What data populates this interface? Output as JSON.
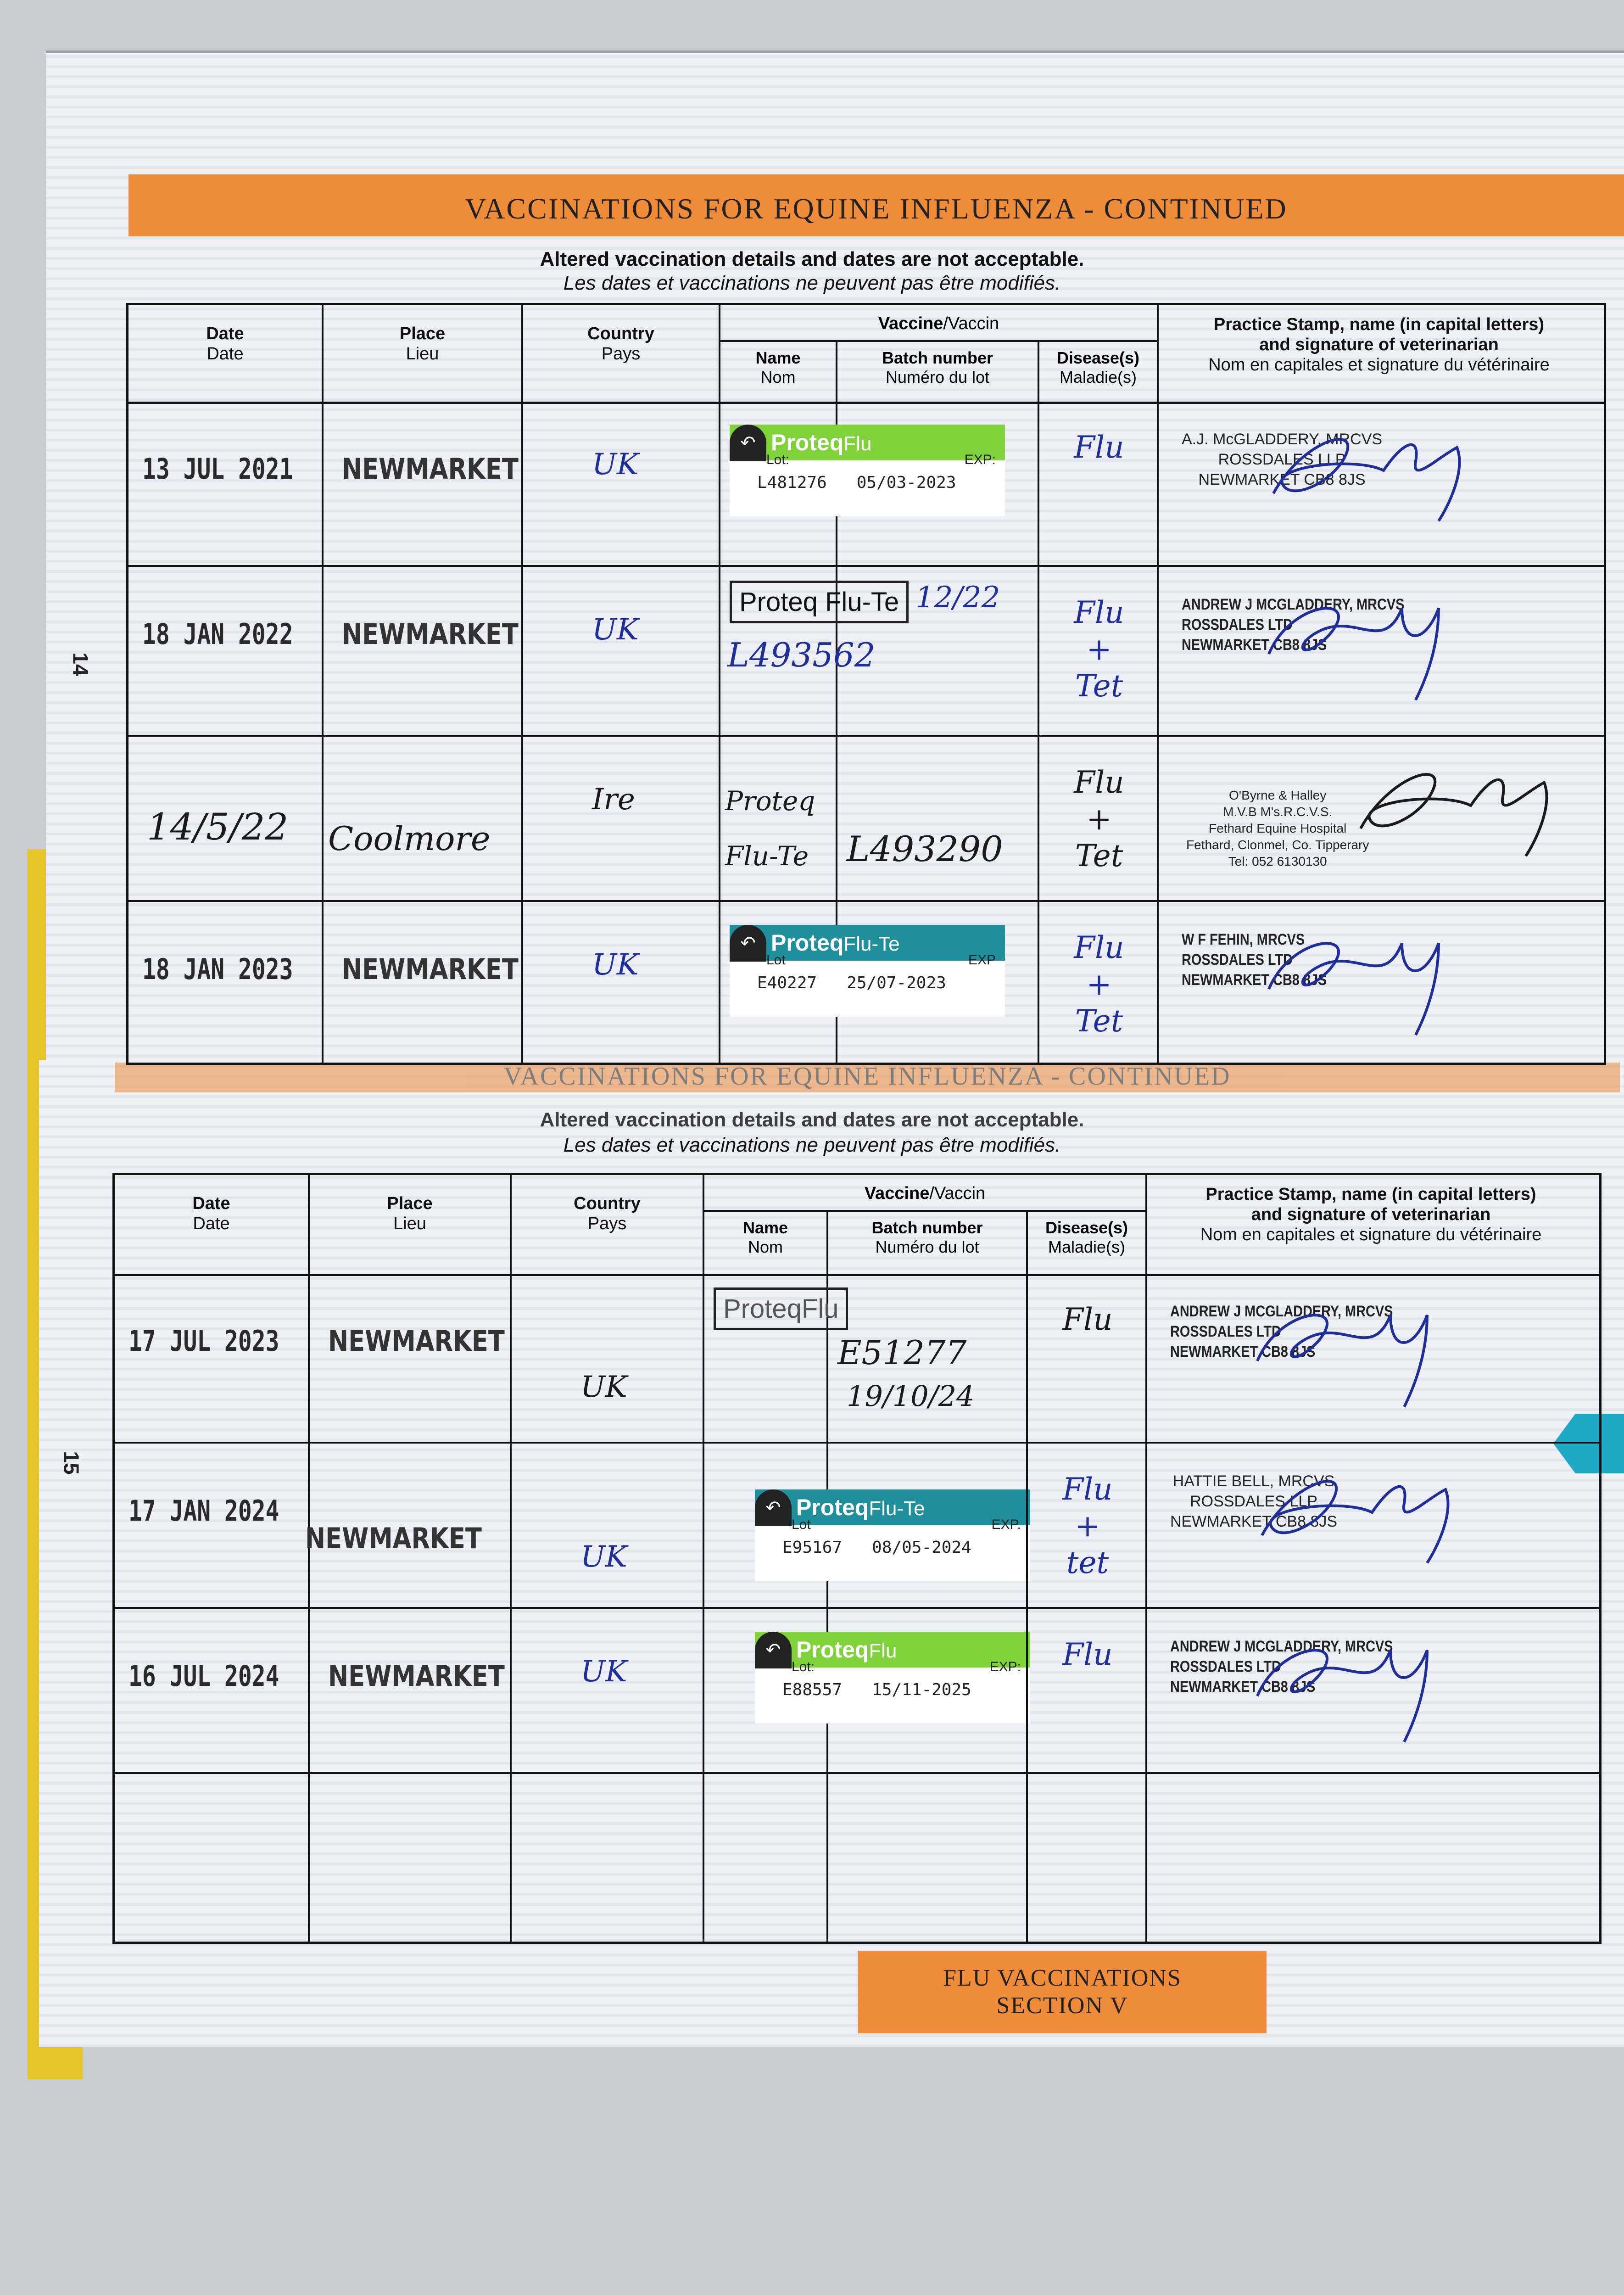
{
  "banner_title": "VACCINATIONS FOR EQUINE INFLUENZA - CONTINUED",
  "notice_en": "Altered vaccination details and dates are not acceptable.",
  "notice_fr": "Les dates et vaccinations ne peuvent pas être modifiés.",
  "headers": {
    "date": {
      "en": "Date",
      "fr": "Date"
    },
    "place": {
      "en": "Place",
      "fr": "Lieu"
    },
    "country": {
      "en": "Country",
      "fr": "Pays"
    },
    "vaccine": {
      "en": "Vaccine",
      "fr": "/Vaccin"
    },
    "name": {
      "en": "Name",
      "fr": "Nom"
    },
    "batch": {
      "en": "Batch number",
      "fr": "Numéro du lot"
    },
    "disease": {
      "en": "Disease(s)",
      "fr": "Maladie(s)"
    },
    "practice": {
      "en": "Practice Stamp, name (in capital letters)",
      "en2": "and signature of veterinarian",
      "fr": "Nom en capitales et signature du vétérinaire"
    }
  },
  "page_numbers": {
    "top": "14",
    "bottom": "15"
  },
  "colors": {
    "banner": "#ef8c3a",
    "sticker_flu": "#7fd23a",
    "sticker_flute": "#1f8f9c",
    "ink_blue": "#1e2f9a",
    "cover": "#e8c62a",
    "tab": "#1fa9c7"
  },
  "pages": [
    {
      "rows": [
        {
          "date": "13 JUL 2021",
          "date_style": "stamp",
          "place": "NEWMARKET",
          "place_style": "stamp",
          "country": "UK",
          "country_ink": "blue",
          "vaccine": {
            "type": "sticker",
            "variant": "flu",
            "brand": "Proteq",
            "product": "Flu",
            "lot_label": "Lot:",
            "exp_label": "EXP:",
            "lot": "L481276",
            "exp": "05/03-2023"
          },
          "disease": "Flu",
          "disease_ink": "blue",
          "vet": {
            "style": "plain",
            "lines": [
              "A.J. McGLADDERY, MRCVS",
              "ROSSDALES LLP",
              "NEWMARKET CB8 8JS"
            ]
          }
        },
        {
          "date": "18 JAN 2022",
          "date_style": "stamp",
          "place": "NEWMARKET",
          "place_style": "stamp",
          "country": "UK",
          "country_ink": "blue",
          "vaccine": {
            "type": "boxed",
            "name": "Proteq Flu-Te",
            "extra": "12/22",
            "batch": "L493562"
          },
          "disease": "Flu + Tet",
          "disease_ink": "blue",
          "vet": {
            "style": "bold",
            "lines": [
              "ANDREW J MCGLADDERY, MRCVS",
              "ROSSDALES LTD",
              "NEWMARKET CB8 8JS"
            ]
          }
        },
        {
          "date": "14/5/22",
          "date_style": "hand",
          "place": "Coolmore",
          "place_style": "hand",
          "country": "Ire",
          "country_ink": "black",
          "vaccine": {
            "type": "hand",
            "name": "Proteq Flu-Te",
            "batch": "L493290"
          },
          "disease": "Flu + Tet",
          "disease_ink": "black",
          "vet": {
            "style": "center",
            "lines": [
              "O'Byrne & Halley",
              "M.V.B M's.R.C.V.S.",
              "Fethard Equine Hospital",
              "Fethard, Clonmel, Co. Tipperary",
              "Tel: 052 6130130"
            ]
          }
        },
        {
          "date": "18 JAN 2023",
          "date_style": "stamp",
          "place": "NEWMARKET",
          "place_style": "stamp",
          "country": "UK",
          "country_ink": "blue",
          "vaccine": {
            "type": "sticker",
            "variant": "flute",
            "brand": "Proteq",
            "product": "Flu-Te",
            "lot_label": "Lot",
            "exp_label": "EXP",
            "lot": "E40227",
            "exp": "25/07-2023"
          },
          "disease": "Flu + Tet",
          "disease_ink": "blue",
          "vet": {
            "style": "bold",
            "lines": [
              "W F FEHIN, MRCVS",
              "ROSSDALES LTD",
              "NEWMARKET CB8 8JS"
            ]
          }
        }
      ]
    },
    {
      "rows": [
        {
          "date": "17 JUL 2023",
          "date_style": "stamp",
          "place": "NEWMARKET",
          "place_style": "stamp",
          "country": "UK",
          "country_ink": "black",
          "vaccine": {
            "type": "boxed",
            "name": "ProteqFlu",
            "batch": "E51277",
            "extra": "19/10/24"
          },
          "disease": "Flu",
          "disease_ink": "black",
          "vet": {
            "style": "bold",
            "lines": [
              "ANDREW J MCGLADDERY, MRCVS",
              "ROSSDALES LTD",
              "NEWMARKET CB8 8JS"
            ]
          }
        },
        {
          "date": "17 JAN 2024",
          "date_style": "stamp",
          "place": "NEWMARKET",
          "place_style": "stamp",
          "country": "UK",
          "country_ink": "blue",
          "vaccine": {
            "type": "sticker",
            "variant": "flute",
            "brand": "Proteq",
            "product": "Flu-Te",
            "lot_label": "Lot",
            "exp_label": "EXP.",
            "lot": "E95167",
            "exp": "08/05-2024"
          },
          "disease": "Flu + tet",
          "disease_ink": "blue",
          "vet": {
            "style": "center",
            "lines": [
              "HATTIE BELL, MRCVS",
              "ROSSDALES LLP",
              "NEWMARKET CB8 8JS"
            ]
          }
        },
        {
          "date": "16 JUL 2024",
          "date_style": "stamp",
          "place": "NEWMARKET",
          "place_style": "stamp",
          "country": "UK",
          "country_ink": "blue",
          "vaccine": {
            "type": "sticker",
            "variant": "flu",
            "brand": "Proteq",
            "product": "Flu",
            "lot_label": "Lot:",
            "exp_label": "EXP:",
            "lot": "E88557",
            "exp": "15/11-2025"
          },
          "disease": "Flu",
          "disease_ink": "blue",
          "vet": {
            "style": "bold",
            "lines": [
              "ANDREW J MCGLADDERY, MRCVS",
              "ROSSDALES LTD",
              "NEWMARKET CB8 8JS"
            ]
          }
        },
        {
          "date": "",
          "place": "",
          "country": "",
          "vaccine": {
            "type": "empty"
          },
          "disease": "",
          "vet": {
            "style": "plain",
            "lines": []
          }
        }
      ]
    }
  ],
  "footer_box": {
    "line1": "FLU VACCINATIONS",
    "line2": "SECTION V"
  }
}
